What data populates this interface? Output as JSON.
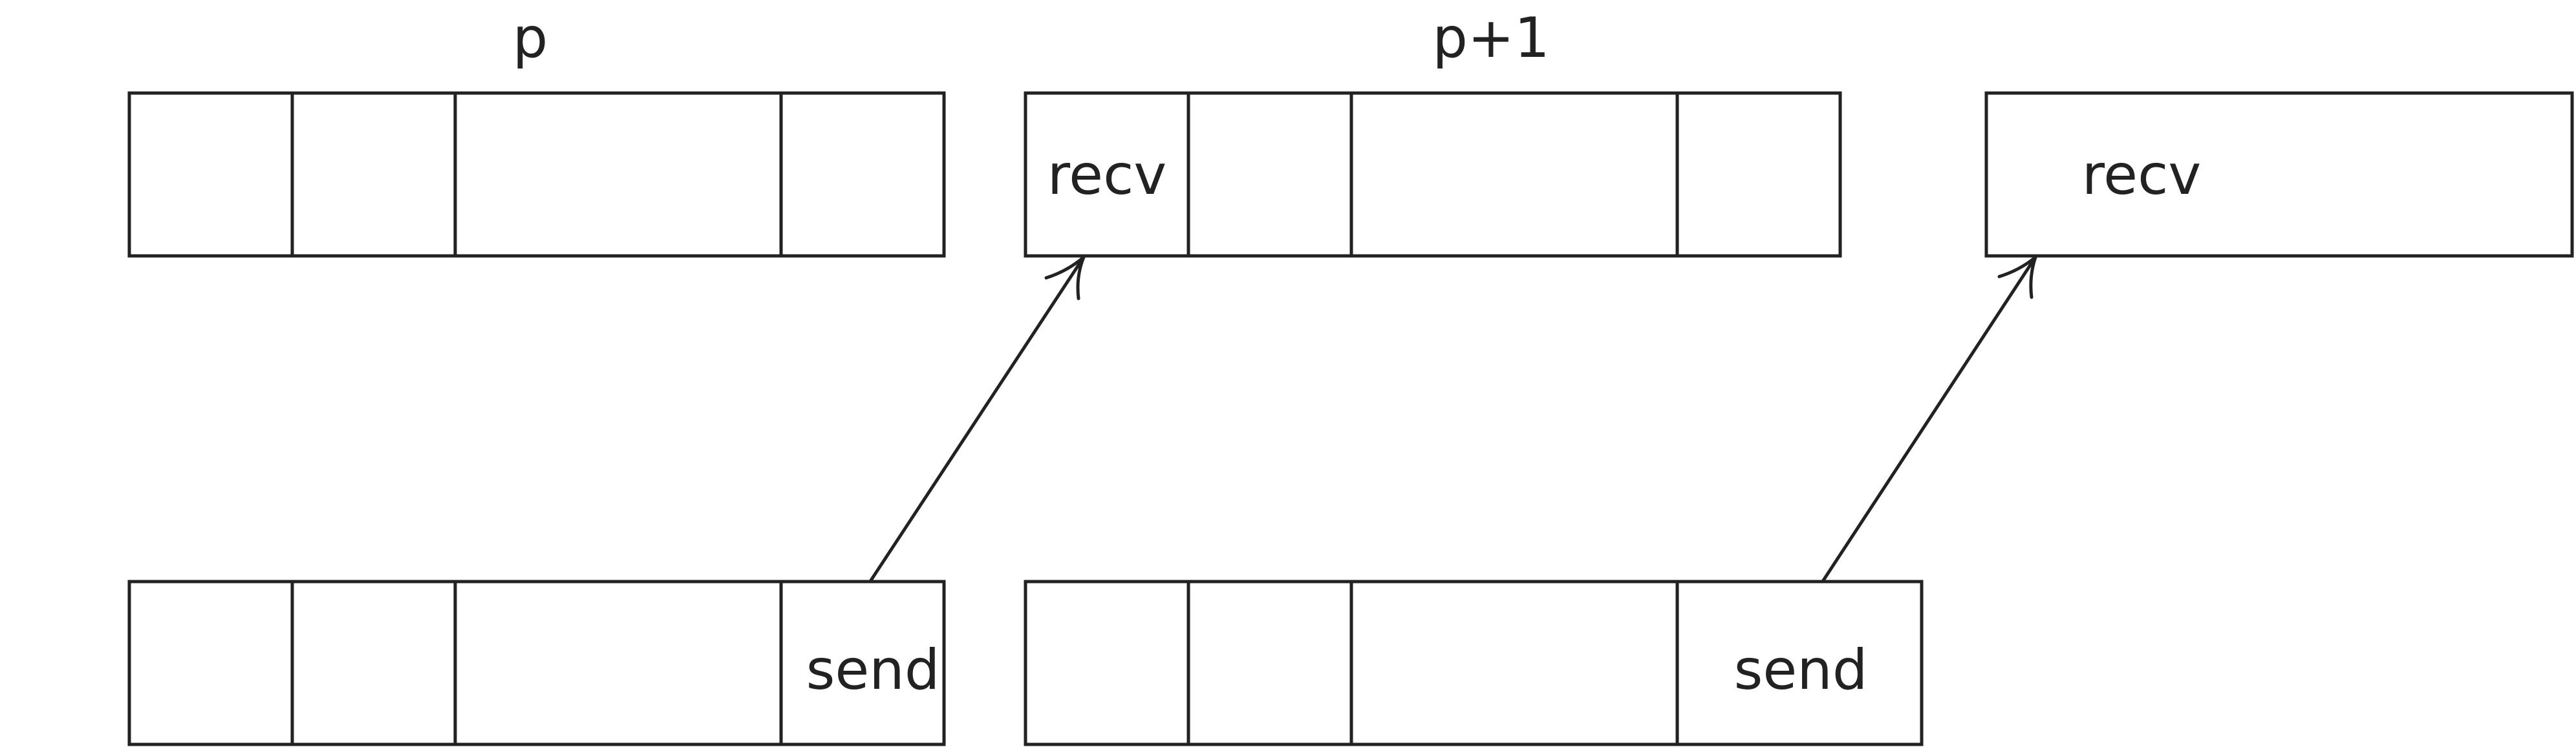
{
  "diagram": {
    "title_left": "p",
    "title_right": "p+1",
    "recv_label": "recv",
    "send_label": "send"
  }
}
